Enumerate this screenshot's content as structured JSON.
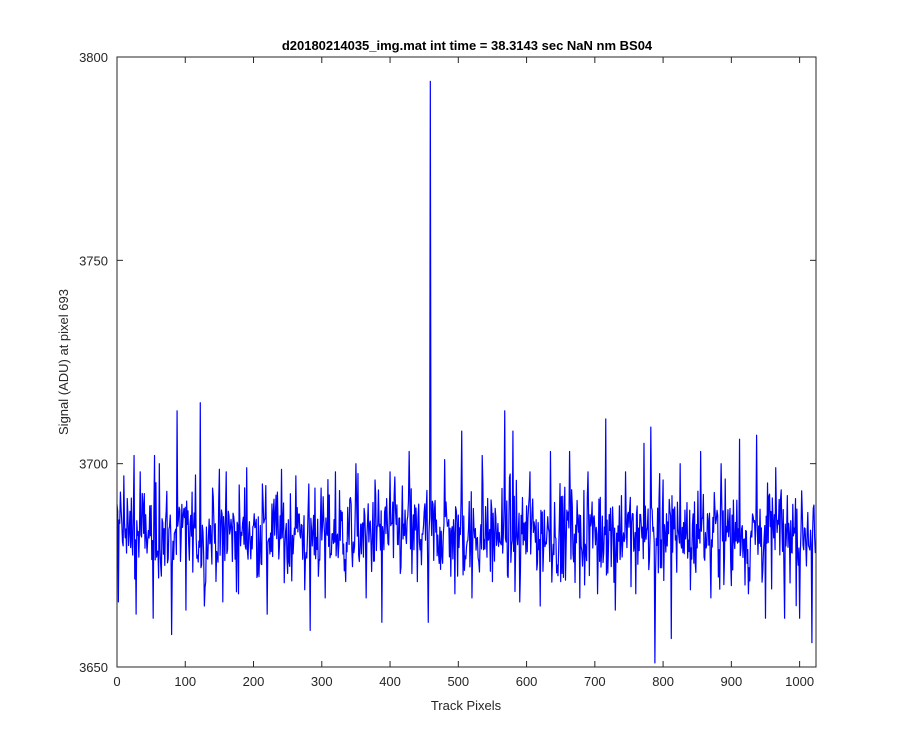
{
  "chart_data": {
    "type": "line",
    "title": "d20180214035_img.mat int time = 38.3143 sec  NaN nm BS04",
    "xlabel": "Track Pixels",
    "ylabel": "Signal (ADU) at pixel 693",
    "xlim": [
      0,
      1024
    ],
    "ylim": [
      3650,
      3800
    ],
    "xticks": [
      0,
      100,
      200,
      300,
      400,
      500,
      600,
      700,
      800,
      900,
      1000
    ],
    "yticks": [
      3650,
      3700,
      3750,
      3800
    ],
    "grid": false,
    "series": [
      {
        "color": "#0000ff",
        "baseline": 3683,
        "noise_amplitude": 8,
        "n_points": 1024,
        "x_start": 0,
        "notable_points": [
          {
            "x": 0,
            "y": 3690
          },
          {
            "x": 2,
            "y": 3666
          },
          {
            "x": 5,
            "y": 3693
          },
          {
            "x": 10,
            "y": 3697
          },
          {
            "x": 14,
            "y": 3678
          },
          {
            "x": 25,
            "y": 3702
          },
          {
            "x": 28,
            "y": 3663
          },
          {
            "x": 34,
            "y": 3698
          },
          {
            "x": 44,
            "y": 3678
          },
          {
            "x": 53,
            "y": 3662
          },
          {
            "x": 55,
            "y": 3702
          },
          {
            "x": 62,
            "y": 3700
          },
          {
            "x": 70,
            "y": 3675
          },
          {
            "x": 80,
            "y": 3658
          },
          {
            "x": 88,
            "y": 3713
          },
          {
            "x": 95,
            "y": 3690
          },
          {
            "x": 101,
            "y": 3664
          },
          {
            "x": 110,
            "y": 3693
          },
          {
            "x": 122,
            "y": 3715
          },
          {
            "x": 128,
            "y": 3665
          },
          {
            "x": 140,
            "y": 3694
          },
          {
            "x": 155,
            "y": 3666
          },
          {
            "x": 160,
            "y": 3698
          },
          {
            "x": 178,
            "y": 3668
          },
          {
            "x": 190,
            "y": 3699
          },
          {
            "x": 205,
            "y": 3672
          },
          {
            "x": 213,
            "y": 3695
          },
          {
            "x": 220,
            "y": 3663
          },
          {
            "x": 235,
            "y": 3693
          },
          {
            "x": 250,
            "y": 3673
          },
          {
            "x": 262,
            "y": 3697
          },
          {
            "x": 275,
            "y": 3669
          },
          {
            "x": 283,
            "y": 3659
          },
          {
            "x": 290,
            "y": 3694
          },
          {
            "x": 305,
            "y": 3667
          },
          {
            "x": 320,
            "y": 3698
          },
          {
            "x": 335,
            "y": 3671
          },
          {
            "x": 350,
            "y": 3700
          },
          {
            "x": 365,
            "y": 3667
          },
          {
            "x": 378,
            "y": 3696
          },
          {
            "x": 388,
            "y": 3661
          },
          {
            "x": 400,
            "y": 3698
          },
          {
            "x": 415,
            "y": 3673
          },
          {
            "x": 428,
            "y": 3703
          },
          {
            "x": 440,
            "y": 3671
          },
          {
            "x": 456,
            "y": 3661
          },
          {
            "x": 459,
            "y": 3794
          },
          {
            "x": 463,
            "y": 3690
          },
          {
            "x": 480,
            "y": 3701
          },
          {
            "x": 495,
            "y": 3668
          },
          {
            "x": 505,
            "y": 3708
          },
          {
            "x": 520,
            "y": 3667
          },
          {
            "x": 535,
            "y": 3702
          },
          {
            "x": 550,
            "y": 3671
          },
          {
            "x": 568,
            "y": 3713
          },
          {
            "x": 580,
            "y": 3708
          },
          {
            "x": 590,
            "y": 3666
          },
          {
            "x": 605,
            "y": 3698
          },
          {
            "x": 620,
            "y": 3665
          },
          {
            "x": 635,
            "y": 3703
          },
          {
            "x": 650,
            "y": 3671
          },
          {
            "x": 663,
            "y": 3703
          },
          {
            "x": 678,
            "y": 3667
          },
          {
            "x": 690,
            "y": 3698
          },
          {
            "x": 704,
            "y": 3668
          },
          {
            "x": 716,
            "y": 3711
          },
          {
            "x": 730,
            "y": 3664
          },
          {
            "x": 745,
            "y": 3698
          },
          {
            "x": 760,
            "y": 3668
          },
          {
            "x": 772,
            "y": 3705
          },
          {
            "x": 782,
            "y": 3709
          },
          {
            "x": 788,
            "y": 3651
          },
          {
            "x": 800,
            "y": 3696
          },
          {
            "x": 812,
            "y": 3657
          },
          {
            "x": 825,
            "y": 3700
          },
          {
            "x": 840,
            "y": 3669
          },
          {
            "x": 855,
            "y": 3703
          },
          {
            "x": 870,
            "y": 3667
          },
          {
            "x": 885,
            "y": 3700
          },
          {
            "x": 900,
            "y": 3670
          },
          {
            "x": 912,
            "y": 3706
          },
          {
            "x": 925,
            "y": 3668
          },
          {
            "x": 937,
            "y": 3707
          },
          {
            "x": 950,
            "y": 3662
          },
          {
            "x": 965,
            "y": 3699
          },
          {
            "x": 978,
            "y": 3662
          },
          {
            "x": 990,
            "y": 3690
          },
          {
            "x": 1000,
            "y": 3662
          },
          {
            "x": 1012,
            "y": 3688
          },
          {
            "x": 1018,
            "y": 3656
          },
          {
            "x": 1020,
            "y": 3689
          },
          {
            "x": 1023,
            "y": 3678
          }
        ]
      }
    ]
  }
}
